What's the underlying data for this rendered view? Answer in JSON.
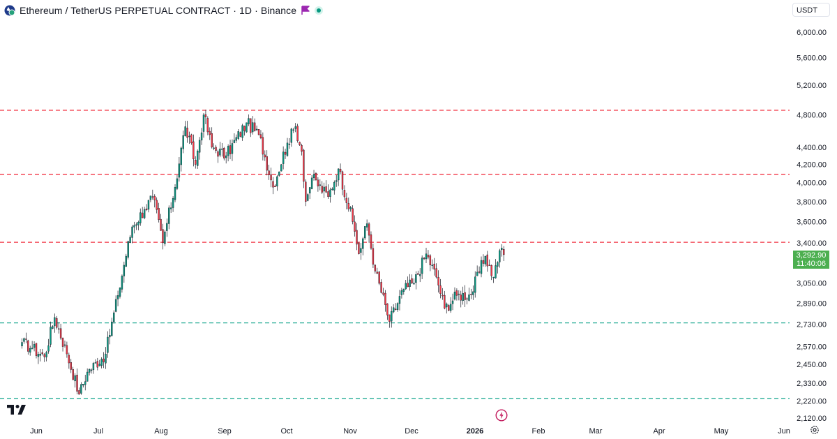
{
  "header": {
    "title": "Ethereum / TetherUS PERPETUAL CONTRACT · 1D · Binance",
    "logo_icon": "ethereum-logo-icon",
    "flag_icon": "purple-flag-icon",
    "status_icon": "market-status-dot-icon"
  },
  "currency_button": {
    "label": "USDT"
  },
  "price_tag": {
    "price": "3,292.90",
    "countdown": "11:40:06",
    "color": "#4caf50"
  },
  "colors": {
    "up": "#089981",
    "down": "#f23645",
    "resistance": "#f23645",
    "support": "#22ab94"
  },
  "chart_data": {
    "type": "candlestick",
    "scale": "log",
    "ylim": [
      2070,
      6700
    ],
    "y_ticks": [
      "6,000.00",
      "5,600.00",
      "5,200.00",
      "4,800.00",
      "4,400.00",
      "4,200.00",
      "4,000.00",
      "3,800.00",
      "3,600.00",
      "3,400.00",
      "3,050.00",
      "2,890.00",
      "2,730.00",
      "2,570.00",
      "2,450.00",
      "2,330.00",
      "2,220.00",
      "2,120.00"
    ],
    "x_ticks": [
      {
        "label": "Jun",
        "bold": false
      },
      {
        "label": "Jul",
        "bold": false
      },
      {
        "label": "Aug",
        "bold": false
      },
      {
        "label": "Sep",
        "bold": false
      },
      {
        "label": "Oct",
        "bold": false
      },
      {
        "label": "Nov",
        "bold": false
      },
      {
        "label": "Dec",
        "bold": false
      },
      {
        "label": "2026",
        "bold": true
      },
      {
        "label": "Feb",
        "bold": false
      },
      {
        "label": "Mar",
        "bold": false
      },
      {
        "label": "Apr",
        "bold": false
      },
      {
        "label": "May",
        "bold": false
      },
      {
        "label": "Jun",
        "bold": false
      }
    ],
    "horizontal_lines": [
      {
        "price": 4860,
        "kind": "resistance"
      },
      {
        "price": 4090,
        "kind": "resistance"
      },
      {
        "price": 3405,
        "kind": "resistance"
      },
      {
        "price": 2740,
        "kind": "support"
      },
      {
        "price": 2235,
        "kind": "support"
      }
    ],
    "anchors": [
      {
        "date": "2025-05-25",
        "close": 2600
      },
      {
        "date": "2025-05-30",
        "close": 2560
      },
      {
        "date": "2025-06-05",
        "close": 2500
      },
      {
        "date": "2025-06-10",
        "close": 2780
      },
      {
        "date": "2025-06-16",
        "close": 2520
      },
      {
        "date": "2025-06-22",
        "close": 2260
      },
      {
        "date": "2025-06-26",
        "close": 2400
      },
      {
        "date": "2025-07-05",
        "close": 2520
      },
      {
        "date": "2025-07-11",
        "close": 2950
      },
      {
        "date": "2025-07-18",
        "close": 3550
      },
      {
        "date": "2025-07-24",
        "close": 3720
      },
      {
        "date": "2025-07-28",
        "close": 3850
      },
      {
        "date": "2025-08-02",
        "close": 3400
      },
      {
        "date": "2025-08-08",
        "close": 3950
      },
      {
        "date": "2025-08-13",
        "close": 4650
      },
      {
        "date": "2025-08-18",
        "close": 4200
      },
      {
        "date": "2025-08-22",
        "close": 4800
      },
      {
        "date": "2025-08-26",
        "close": 4400
      },
      {
        "date": "2025-09-02",
        "close": 4300
      },
      {
        "date": "2025-09-12",
        "close": 4700
      },
      {
        "date": "2025-09-18",
        "close": 4550
      },
      {
        "date": "2025-09-25",
        "close": 3950
      },
      {
        "date": "2025-10-02",
        "close": 4450
      },
      {
        "date": "2025-10-06",
        "close": 4650
      },
      {
        "date": "2025-10-09",
        "close": 4350
      },
      {
        "date": "2025-10-11",
        "close": 3800
      },
      {
        "date": "2025-10-14",
        "close": 4050
      },
      {
        "date": "2025-10-22",
        "close": 3850
      },
      {
        "date": "2025-10-27",
        "close": 4150
      },
      {
        "date": "2025-11-03",
        "close": 3600
      },
      {
        "date": "2025-11-06",
        "close": 3300
      },
      {
        "date": "2025-11-10",
        "close": 3580
      },
      {
        "date": "2025-11-14",
        "close": 3150
      },
      {
        "date": "2025-11-21",
        "close": 2750
      },
      {
        "date": "2025-11-28",
        "close": 3000
      },
      {
        "date": "2025-12-03",
        "close": 3050
      },
      {
        "date": "2025-12-09",
        "close": 3300
      },
      {
        "date": "2025-12-14",
        "close": 3100
      },
      {
        "date": "2025-12-18",
        "close": 2850
      },
      {
        "date": "2025-12-24",
        "close": 2950
      },
      {
        "date": "2025-12-31",
        "close": 2960
      },
      {
        "date": "2026-01-07",
        "close": 3280
      },
      {
        "date": "2026-01-11",
        "close": 3100
      },
      {
        "date": "2026-01-14",
        "close": 3330
      },
      {
        "date": "2026-01-16",
        "close": 3293
      }
    ],
    "last_price": 3292.9
  }
}
